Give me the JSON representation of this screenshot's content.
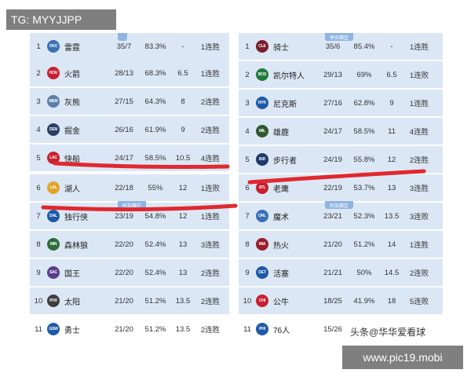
{
  "badges": {
    "tg": "TG: MYYJJPP",
    "url": "www.pic19.mobi",
    "watermark": "头条@华华爱看球"
  },
  "west": {
    "tab_top": "",
    "tab_mid": "附加赛区",
    "rows": [
      {
        "rank": "1",
        "code": "OKC",
        "color": "#3a6fb5",
        "team": "雷霆",
        "record": "35/7",
        "pct": "83.3%",
        "gb": "-",
        "streak": "1连胜"
      },
      {
        "rank": "2",
        "code": "HOU",
        "color": "#c8202f",
        "team": "火箭",
        "record": "28/13",
        "pct": "68.3%",
        "gb": "6.5",
        "streak": "1连胜"
      },
      {
        "rank": "3",
        "code": "MEM",
        "color": "#5b7fa5",
        "team": "灰熊",
        "record": "27/15",
        "pct": "64.3%",
        "gb": "8",
        "streak": "2连胜"
      },
      {
        "rank": "4",
        "code": "DEN",
        "color": "#2a3f66",
        "team": "掘金",
        "record": "26/16",
        "pct": "61.9%",
        "gb": "9",
        "streak": "2连胜"
      },
      {
        "rank": "5",
        "code": "LAC",
        "color": "#c8202f",
        "team": "快船",
        "record": "24/17",
        "pct": "58.5%",
        "gb": "10.5",
        "streak": "4连胜"
      },
      {
        "rank": "6",
        "code": "LAL",
        "color": "#e0a526",
        "team": "湖人",
        "record": "22/18",
        "pct": "55%",
        "gb": "12",
        "streak": "1连败"
      },
      {
        "rank": "7",
        "code": "DAL",
        "color": "#1f5aa8",
        "team": "独行侠",
        "record": "23/19",
        "pct": "54.8%",
        "gb": "12",
        "streak": "1连胜"
      },
      {
        "rank": "8",
        "code": "MIN",
        "color": "#2f6b3c",
        "team": "森林狼",
        "record": "22/20",
        "pct": "52.4%",
        "gb": "13",
        "streak": "3连胜"
      },
      {
        "rank": "9",
        "code": "SAC",
        "color": "#5a3d8a",
        "team": "国王",
        "record": "22/20",
        "pct": "52.4%",
        "gb": "13",
        "streak": "2连胜"
      },
      {
        "rank": "10",
        "code": "PHX",
        "color": "#3d3d3d",
        "team": "太阳",
        "record": "21/20",
        "pct": "51.2%",
        "gb": "13.5",
        "streak": "2连胜"
      },
      {
        "rank": "11",
        "code": "GSW",
        "color": "#1f5aa8",
        "team": "勇士",
        "record": "21/20",
        "pct": "51.2%",
        "gb": "13.5",
        "streak": "2连胜"
      }
    ]
  },
  "east": {
    "tab_top": "季后赛区",
    "tab_mid": "附加赛区",
    "rows": [
      {
        "rank": "1",
        "code": "CLE",
        "color": "#7a1d2c",
        "team": "骑士",
        "record": "35/6",
        "pct": "85.4%",
        "gb": "-",
        "streak": "1连胜"
      },
      {
        "rank": "2",
        "code": "BOS",
        "color": "#1f7a3c",
        "team": "凯尔特人",
        "record": "29/13",
        "pct": "69%",
        "gb": "6.5",
        "streak": "1连败"
      },
      {
        "rank": "3",
        "code": "NYK",
        "color": "#1f5aa8",
        "team": "尼克斯",
        "record": "27/16",
        "pct": "62.8%",
        "gb": "9",
        "streak": "1连胜"
      },
      {
        "rank": "4",
        "code": "MIL",
        "color": "#2f5a2f",
        "team": "雄鹿",
        "record": "24/17",
        "pct": "58.5%",
        "gb": "11",
        "streak": "4连胜"
      },
      {
        "rank": "5",
        "code": "IND",
        "color": "#1f3a6b",
        "team": "步行者",
        "record": "24/19",
        "pct": "55.8%",
        "gb": "12",
        "streak": "2连胜"
      },
      {
        "rank": "6",
        "code": "ATL",
        "color": "#c8202f",
        "team": "老鹰",
        "record": "22/19",
        "pct": "53.7%",
        "gb": "13",
        "streak": "3连胜"
      },
      {
        "rank": "7",
        "code": "ORL",
        "color": "#3a6fb5",
        "team": "魔术",
        "record": "23/21",
        "pct": "52.3%",
        "gb": "13.5",
        "streak": "3连败"
      },
      {
        "rank": "8",
        "code": "MIA",
        "color": "#9a1d2c",
        "team": "热火",
        "record": "21/20",
        "pct": "51.2%",
        "gb": "14",
        "streak": "1连胜"
      },
      {
        "rank": "9",
        "code": "DET",
        "color": "#1f5aa8",
        "team": "活塞",
        "record": "21/21",
        "pct": "50%",
        "gb": "14.5",
        "streak": "2连败"
      },
      {
        "rank": "10",
        "code": "CHI",
        "color": "#c8202f",
        "team": "公牛",
        "record": "18/25",
        "pct": "41.9%",
        "gb": "18",
        "streak": "5连败"
      },
      {
        "rank": "11",
        "code": "PHI",
        "color": "#1f5aa8",
        "team": "76人",
        "record": "15/26",
        "pct": "",
        "gb": "",
        "streak": ""
      }
    ]
  }
}
